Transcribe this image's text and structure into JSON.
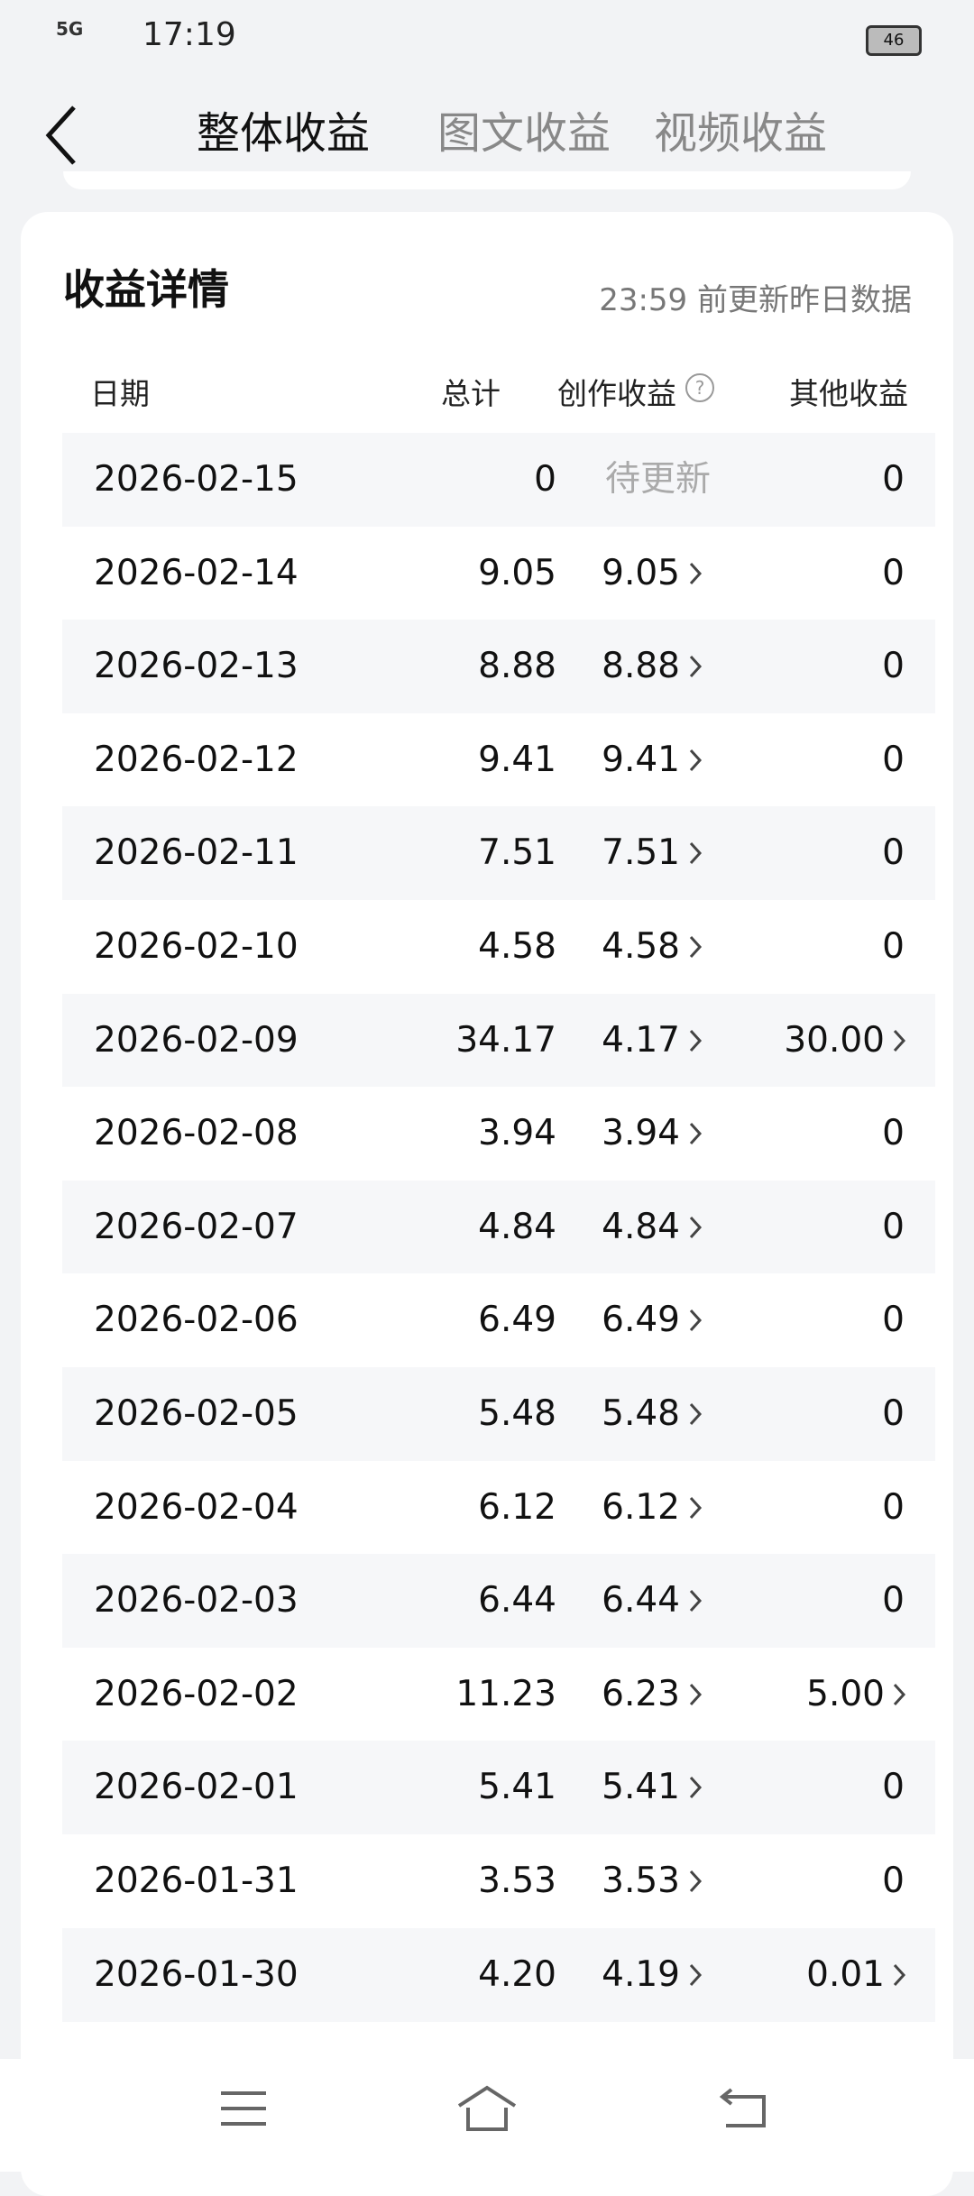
{
  "status_bar": {
    "network": "5G",
    "time": "17:19",
    "battery": "46"
  },
  "tabs": [
    "整体收益",
    "图文收益",
    "视频收益"
  ],
  "section": {
    "title": "收益详情",
    "note": "23:59 前更新昨日数据"
  },
  "table": {
    "headers": [
      "日期",
      "总计",
      "创作收益",
      "其他收益"
    ],
    "rows": [
      [
        "2026-02-15",
        "0",
        "待更新",
        "0"
      ],
      [
        "2026-02-14",
        "9.05",
        "9.05",
        "0"
      ],
      [
        "2026-02-13",
        "8.88",
        "8.88",
        "0"
      ],
      [
        "2026-02-12",
        "9.41",
        "9.41",
        "0"
      ],
      [
        "2026-02-11",
        "7.51",
        "7.51",
        "0"
      ],
      [
        "2026-02-10",
        "4.58",
        "4.58",
        "0"
      ],
      [
        "2026-02-09",
        "34.17",
        "4.17",
        "30.00"
      ],
      [
        "2026-02-08",
        "3.94",
        "3.94",
        "0"
      ],
      [
        "2026-02-07",
        "4.84",
        "4.84",
        "0"
      ],
      [
        "2026-02-06",
        "6.49",
        "6.49",
        "0"
      ],
      [
        "2026-02-05",
        "5.48",
        "5.48",
        "0"
      ],
      [
        "2026-02-04",
        "6.12",
        "6.12",
        "0"
      ],
      [
        "2026-02-03",
        "6.44",
        "6.44",
        "0"
      ],
      [
        "2026-02-02",
        "11.23",
        "6.23",
        "5.00"
      ],
      [
        "2026-02-01",
        "5.41",
        "5.41",
        "0"
      ],
      [
        "2026-01-31",
        "3.53",
        "3.53",
        "0"
      ],
      [
        "2026-01-30",
        "4.20",
        "4.19",
        "0.01"
      ]
    ]
  }
}
